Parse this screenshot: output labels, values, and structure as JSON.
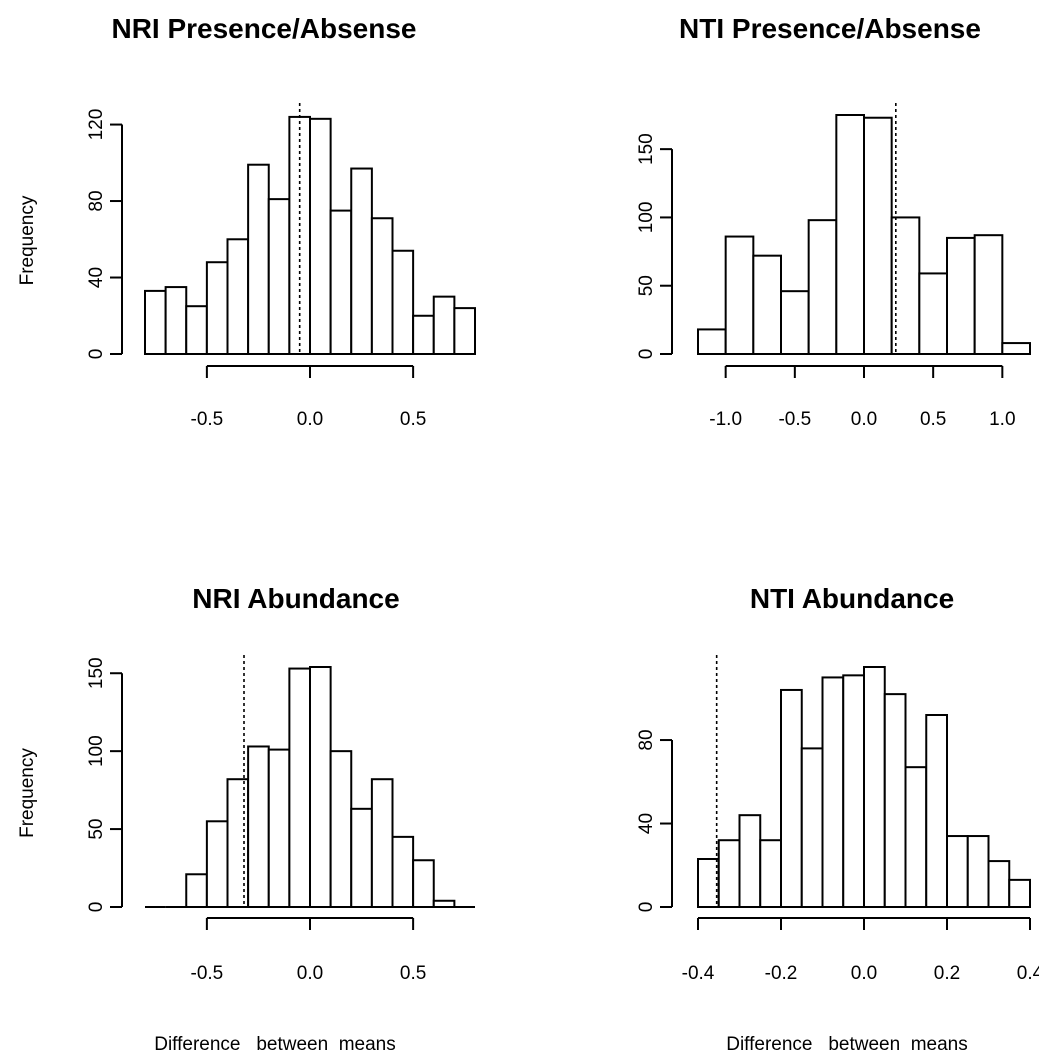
{
  "chart_data": [
    {
      "type": "bar",
      "title": "NRI Presence/Absense",
      "xlabel": "",
      "ylabel": "Frequency",
      "bin_width": 0.1,
      "bins_start": [
        -0.8,
        -0.7,
        -0.6,
        -0.5,
        -0.4,
        -0.3,
        -0.2,
        -0.1,
        0.0,
        0.1,
        0.2,
        0.3,
        0.4,
        0.5,
        0.6,
        0.7
      ],
      "values": [
        33,
        35,
        25,
        48,
        60,
        99,
        81,
        124,
        123,
        75,
        97,
        71,
        54,
        20,
        30,
        24
      ],
      "xlim": [
        -0.8,
        0.8
      ],
      "ylim": [
        0,
        125
      ],
      "x_ticks": [
        -0.5,
        0.0,
        0.5
      ],
      "x_tick_labels": [
        "-0.5",
        "0.0",
        "0.5"
      ],
      "y_ticks": [
        0,
        40,
        80,
        120
      ],
      "y_tick_labels": [
        "0",
        "40",
        "80",
        "120"
      ],
      "ref_line_x": -0.05,
      "grid": false
    },
    {
      "type": "bar",
      "title": "NTI Presence/Absense",
      "xlabel": "",
      "ylabel": "",
      "bin_width": 0.2,
      "bins_start": [
        -1.2,
        -1.0,
        -0.8,
        -0.6,
        -0.4,
        -0.2,
        0.0,
        0.2,
        0.4,
        0.6,
        0.8,
        1.0
      ],
      "values": [
        18,
        86,
        72,
        46,
        98,
        175,
        173,
        100,
        59,
        85,
        87,
        8
      ],
      "xlim": [
        -1.2,
        1.2
      ],
      "ylim": [
        0,
        175
      ],
      "x_ticks": [
        -1.0,
        -0.5,
        0.0,
        0.5,
        1.0
      ],
      "x_tick_labels": [
        "-1.0",
        "-0.5",
        "0.0",
        "0.5",
        "1.0"
      ],
      "y_ticks": [
        0,
        50,
        100,
        150
      ],
      "y_tick_labels": [
        "0",
        "50",
        "100",
        "150"
      ],
      "ref_line_x": 0.23,
      "grid": false
    },
    {
      "type": "bar",
      "title": "NRI Abundance",
      "xlabel": "Difference   between  means",
      "ylabel": "Frequency",
      "bin_width": 0.1,
      "bins_start": [
        -0.8,
        -0.7,
        -0.6,
        -0.5,
        -0.4,
        -0.3,
        -0.2,
        -0.1,
        0.0,
        0.1,
        0.2,
        0.3,
        0.4,
        0.5,
        0.6,
        0.7
      ],
      "values": [
        0,
        0,
        21,
        55,
        82,
        103,
        101,
        153,
        154,
        100,
        63,
        82,
        45,
        30,
        4,
        0
      ],
      "xlim": [
        -0.8,
        0.8
      ],
      "ylim": [
        0,
        154
      ],
      "x_ticks": [
        -0.5,
        0.0,
        0.5
      ],
      "x_tick_labels": [
        "-0.5",
        "0.0",
        "0.5"
      ],
      "y_ticks": [
        0,
        50,
        100,
        150
      ],
      "y_tick_labels": [
        "0",
        "50",
        "100",
        "150"
      ],
      "ref_line_x": -0.32,
      "grid": false
    },
    {
      "type": "bar",
      "title": "NTI Abundance",
      "xlabel": "Difference   between  means",
      "ylabel": "",
      "bin_width": 0.05,
      "bins_start": [
        -0.4,
        -0.35,
        -0.3,
        -0.25,
        -0.2,
        -0.15,
        -0.1,
        -0.05,
        0.0,
        0.05,
        0.1,
        0.15,
        0.2,
        0.25,
        0.3,
        0.35
      ],
      "values": [
        23,
        32,
        44,
        32,
        104,
        76,
        110,
        111,
        115,
        102,
        67,
        92,
        34,
        34,
        22,
        13
      ],
      "xlim": [
        -0.4,
        0.4
      ],
      "ylim": [
        0,
        115
      ],
      "x_ticks": [
        -0.4,
        -0.2,
        0.0,
        0.2,
        0.4
      ],
      "x_tick_labels": [
        "-0.4",
        "-0.2",
        "0.0",
        "0.2",
        "0.4"
      ],
      "y_ticks": [
        0,
        40,
        80
      ],
      "y_tick_labels": [
        "0",
        "40",
        "80"
      ],
      "ref_line_x": -0.355,
      "grid": false
    }
  ]
}
